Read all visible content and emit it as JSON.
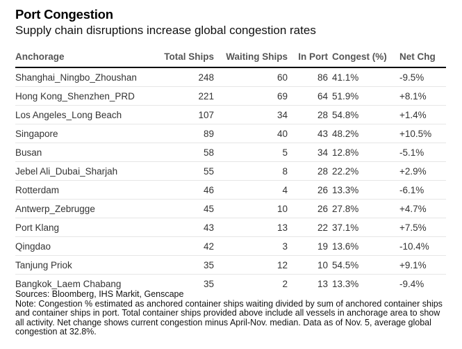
{
  "title": "Port Congestion",
  "subtitle": "Supply chain disruptions increase global congestion rates",
  "columns": [
    "Anchorage",
    "Total Ships",
    "Waiting Ships",
    "In Port",
    "Congest (%)",
    "Net Chg"
  ],
  "rows": [
    [
      "Shanghai_Ningbo_Zhoushan",
      "248",
      "60",
      "86",
      "41.1%",
      "-9.5%"
    ],
    [
      "Hong Kong_Shenzhen_PRD",
      "221",
      "69",
      "64",
      "51.9%",
      "+8.1%"
    ],
    [
      "Los Angeles_Long Beach",
      "107",
      "34",
      "28",
      "54.8%",
      "+1.4%"
    ],
    [
      "Singapore",
      "89",
      "40",
      "43",
      "48.2%",
      "+10.5%"
    ],
    [
      "Busan",
      "58",
      "5",
      "34",
      "12.8%",
      "-5.1%"
    ],
    [
      "Jebel Ali_Dubai_Sharjah",
      "55",
      "8",
      "28",
      "22.2%",
      "+2.9%"
    ],
    [
      "Rotterdam",
      "46",
      "4",
      "26",
      "13.3%",
      "-6.1%"
    ],
    [
      "Antwerp_Zebrugge",
      "45",
      "10",
      "26",
      "27.8%",
      "+4.7%"
    ],
    [
      "Port Klang",
      "43",
      "13",
      "22",
      "37.1%",
      "+7.5%"
    ],
    [
      "Qingdao",
      "42",
      "3",
      "19",
      "13.6%",
      "-10.4%"
    ],
    [
      "Tanjung Priok",
      "35",
      "12",
      "10",
      "54.5%",
      "+9.1%"
    ],
    [
      "Bangkok_Laem Chabang",
      "35",
      "2",
      "13",
      "13.3%",
      "-9.4%"
    ]
  ],
  "sources": "Sources: Bloomberg, IHS Markit, Genscape",
  "note": "Note: Congestion % estimated as anchored container ships waiting divided by sum of anchored container ships and container ships in port. Total container ships provided above include all vessels in anchorage area to show all activity. Net change shows current congestion minus April-Nov. median. Data as of Nov. 5, average global congestion at 32.8%.",
  "chart_data": {
    "type": "table",
    "title": "Port Congestion",
    "subtitle": "Supply chain disruptions increase global congestion rates",
    "columns": [
      "Anchorage",
      "Total Ships",
      "Waiting Ships",
      "In Port",
      "Congest (%)",
      "Net Chg"
    ],
    "anchorage": [
      "Shanghai_Ningbo_Zhoushan",
      "Hong Kong_Shenzhen_PRD",
      "Los Angeles_Long Beach",
      "Singapore",
      "Busan",
      "Jebel Ali_Dubai_Sharjah",
      "Rotterdam",
      "Antwerp_Zebrugge",
      "Port Klang",
      "Qingdao",
      "Tanjung Priok",
      "Bangkok_Laem Chabang"
    ],
    "total_ships": [
      248,
      221,
      107,
      89,
      58,
      55,
      46,
      45,
      43,
      42,
      35,
      35
    ],
    "waiting_ships": [
      60,
      69,
      34,
      40,
      5,
      8,
      4,
      10,
      13,
      3,
      12,
      2
    ],
    "in_port": [
      86,
      64,
      28,
      43,
      34,
      28,
      26,
      26,
      22,
      19,
      10,
      13
    ],
    "congestion_pct": [
      41.1,
      51.9,
      54.8,
      48.2,
      12.8,
      22.2,
      13.3,
      27.8,
      37.1,
      13.6,
      54.5,
      13.3
    ],
    "net_change_pct": [
      -9.5,
      8.1,
      1.4,
      10.5,
      -5.1,
      2.9,
      -6.1,
      4.7,
      7.5,
      -10.4,
      9.1,
      -9.4
    ]
  }
}
